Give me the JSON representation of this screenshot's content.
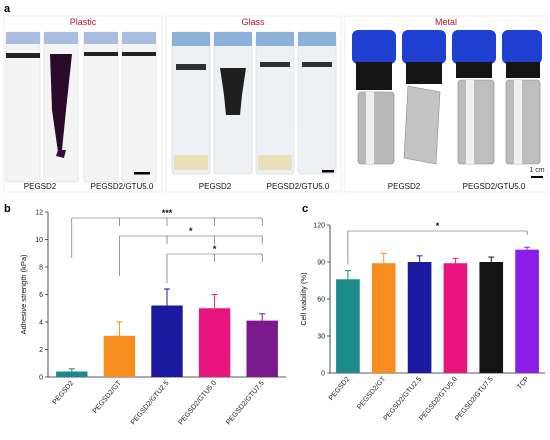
{
  "panel_a": {
    "label": "a",
    "plastic": {
      "title": "Plastic",
      "left": "PEGSD2",
      "right": "PEGSD2/GTU5.0"
    },
    "glass": {
      "title": "Glass",
      "left": "PEGSD2",
      "right": "PEGSD2/GTU5.0"
    },
    "metal": {
      "title": "Metal",
      "left": "PEGSD2",
      "right": "PEGSD2/GTU5.0",
      "scale": "1 cm"
    }
  },
  "chart_data": [
    {
      "panel": "b",
      "type": "bar",
      "ylabel": "Adhesive strength (kPa)",
      "ylim": [
        0,
        12
      ],
      "yticks": [
        0,
        2,
        4,
        6,
        8,
        10,
        12
      ],
      "categories": [
        "PEGSD2",
        "PEGSD2/GT",
        "PEGSD2/GTU2.5",
        "PEGSD2/GTU5.0",
        "PEGSD2/GTU7.5"
      ],
      "values": [
        0.4,
        3.0,
        5.2,
        5.0,
        4.1
      ],
      "errors": [
        0.2,
        1.0,
        1.2,
        1.0,
        0.5
      ],
      "colors": [
        "#1b8a8a",
        "#f78c1f",
        "#1a1aa0",
        "#e8157f",
        "#7b1a8c"
      ],
      "significance": [
        {
          "label": "***",
          "from": 0,
          "to": [
            1,
            2,
            3,
            4
          ]
        },
        {
          "label": "*",
          "from": 1,
          "to": [
            2,
            3,
            4
          ]
        },
        {
          "label": "*",
          "from": 2,
          "to": [
            3,
            4
          ]
        }
      ]
    },
    {
      "panel": "c",
      "type": "bar",
      "ylabel": "Cell viability (%)",
      "ylim": [
        0,
        120
      ],
      "yticks": [
        0,
        30,
        60,
        90,
        120
      ],
      "categories": [
        "PEGSD2",
        "PEGSD2/GT",
        "PEGSD2/GTU2.5",
        "PEGSD2/GTU5.0",
        "PEGSD2/GTU7.5",
        "TCP"
      ],
      "values": [
        76,
        89,
        90,
        89,
        90,
        100
      ],
      "errors": [
        7,
        8,
        5,
        4,
        4,
        2
      ],
      "colors": [
        "#1b8a8a",
        "#f78c1f",
        "#1a1aa0",
        "#e8157f",
        "#141414",
        "#8b1ee6"
      ],
      "significance": [
        {
          "label": "*",
          "from": 0,
          "to": [
            5
          ]
        }
      ]
    }
  ]
}
